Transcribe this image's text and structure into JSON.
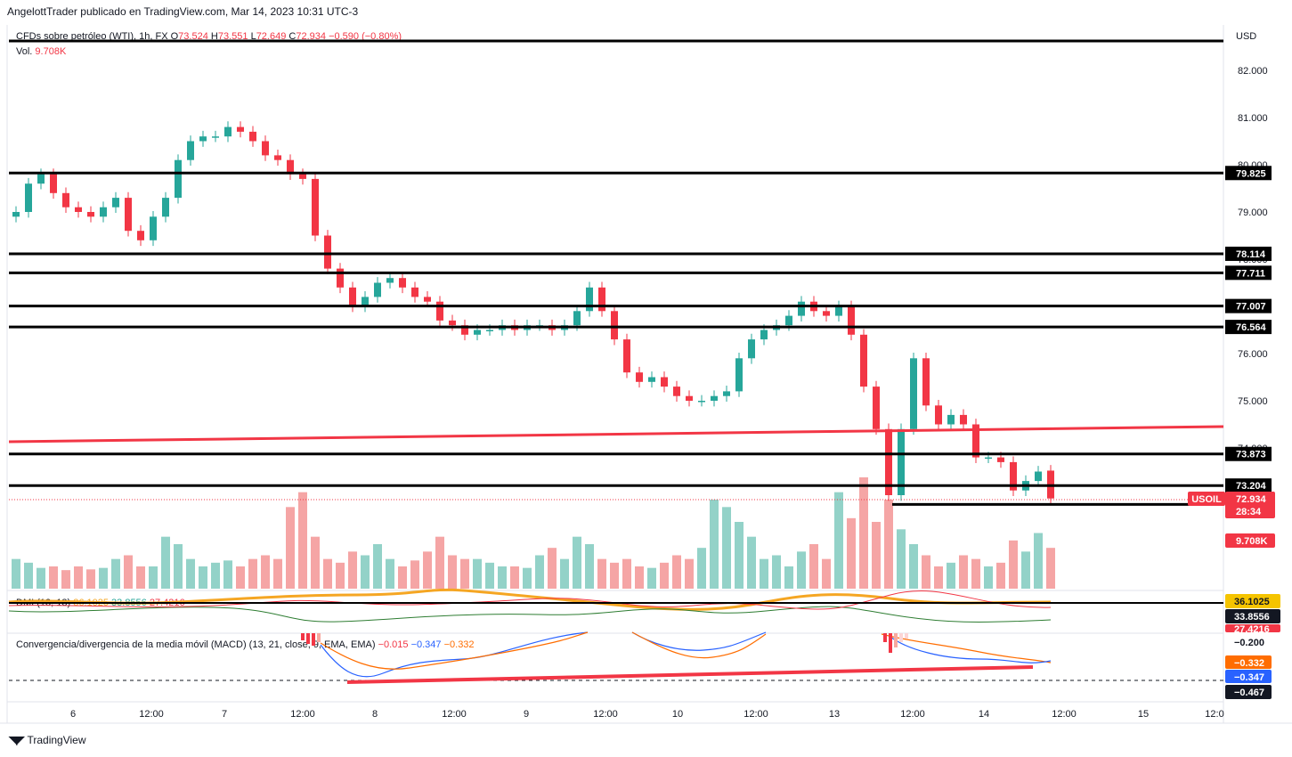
{
  "header": {
    "publisher_line": "AngelottTrader publicado en TradingView.com, Mar 14, 2023 10:31 UTC-3"
  },
  "legend": {
    "symbol": "CFDs sobre petróleo (WTI), 1h, FX",
    "open_label": "O",
    "open": "73.524",
    "high_label": "H",
    "high": "73.551",
    "low_label": "L",
    "low": "72.649",
    "close_label": "C",
    "close": "72.934",
    "change": "−0.590 (−0.80%)",
    "vol_label": "Vol.",
    "vol": "9.708K"
  },
  "dmi_legend": {
    "title": "DMI (13, 13)",
    "v1": "36.1025",
    "v2": "33.8556",
    "v3": "27.4216"
  },
  "macd_legend": {
    "title": "Convergencia/divergencia de la media móvil (MACD) (13, 21, close, 9, EMA, EMA)",
    "hist": "−0.015",
    "macd": "−0.347",
    "signal": "−0.332"
  },
  "currency": "USD",
  "price_axis": [
    "82.000",
    "81.000",
    "80.000",
    "79.000",
    "78.000",
    "77.000",
    "76.000",
    "75.000",
    "74.000"
  ],
  "level_tags": [
    "79.825",
    "78.114",
    "77.711",
    "77.007",
    "76.564",
    "73.873",
    "73.204",
    "72.804"
  ],
  "price_tag": {
    "symbol": "USOIL",
    "price": "72.934",
    "countdown": "28:34",
    "volume": "9.708K"
  },
  "indicator_tags": {
    "dmi_a": "36.1025",
    "dmi_b": "33.8556",
    "dmi_c": "27.4216",
    "macd_axis": "−0.200",
    "signal": "−0.332",
    "macd": "−0.347",
    "low_level": "−0.467"
  },
  "time_axis": [
    "6",
    "12:00",
    "7",
    "12:00",
    "8",
    "12:00",
    "9",
    "12:00",
    "10",
    "12:00",
    "13",
    "12:00",
    "14",
    "12:00",
    "15",
    "12:0"
  ],
  "footer": {
    "brand": "TradingView"
  },
  "colors": {
    "up": "#26a69a",
    "down": "#f23645",
    "level": "#000000",
    "trend": "#f23645"
  },
  "chart_data": {
    "type": "candlestick",
    "symbol": "USOIL",
    "interval": "1h",
    "ylim": [
      72.4,
      82.6
    ],
    "horizontal_levels": [
      79.825,
      78.114,
      77.711,
      77.007,
      76.564,
      73.873,
      73.204,
      72.804
    ],
    "trendline": {
      "from": 73.7,
      "to": 74.45,
      "color": "#f23645"
    },
    "closes": [
      79.0,
      79.6,
      79.8,
      79.4,
      79.1,
      79.0,
      78.9,
      79.1,
      79.3,
      78.6,
      78.4,
      78.9,
      79.3,
      80.1,
      80.5,
      80.6,
      80.6,
      80.8,
      80.7,
      80.5,
      80.2,
      80.1,
      79.8,
      79.7,
      78.5,
      77.8,
      77.4,
      77.0,
      77.2,
      77.5,
      77.6,
      77.4,
      77.2,
      77.1,
      76.7,
      76.6,
      76.4,
      76.5,
      76.5,
      76.6,
      76.5,
      76.6,
      76.6,
      76.5,
      76.6,
      76.9,
      77.4,
      76.9,
      76.3,
      75.6,
      75.4,
      75.5,
      75.3,
      75.1,
      75.0,
      75.0,
      75.1,
      75.2,
      75.9,
      76.3,
      76.5,
      76.6,
      76.8,
      77.1,
      76.9,
      76.8,
      77.0,
      76.4,
      75.3,
      74.4,
      73.0,
      74.4,
      75.9,
      74.9,
      74.5,
      74.7,
      74.5,
      73.8,
      73.8,
      73.7,
      73.1,
      73.3,
      73.5,
      72.93
    ],
    "opens": [
      78.9,
      79.0,
      79.6,
      79.8,
      79.4,
      79.1,
      79.0,
      78.9,
      79.1,
      79.3,
      78.6,
      78.4,
      78.9,
      79.3,
      80.1,
      80.5,
      80.6,
      80.6,
      80.8,
      80.7,
      80.5,
      80.2,
      80.1,
      79.8,
      79.7,
      78.5,
      77.8,
      77.4,
      77.0,
      77.2,
      77.5,
      77.6,
      77.4,
      77.2,
      77.1,
      76.7,
      76.6,
      76.4,
      76.5,
      76.5,
      76.6,
      76.5,
      76.6,
      76.6,
      76.5,
      76.6,
      76.9,
      77.4,
      76.9,
      76.3,
      75.6,
      75.4,
      75.5,
      75.3,
      75.1,
      75.0,
      75.0,
      75.1,
      75.2,
      75.9,
      76.3,
      76.5,
      76.6,
      76.8,
      77.1,
      76.9,
      76.8,
      77.0,
      76.4,
      75.3,
      74.4,
      73.0,
      74.4,
      75.9,
      74.9,
      74.5,
      74.7,
      74.5,
      73.8,
      73.8,
      73.7,
      73.1,
      73.3,
      73.52
    ],
    "volume": [
      40,
      35,
      28,
      30,
      25,
      30,
      26,
      28,
      40,
      45,
      30,
      30,
      70,
      60,
      40,
      30,
      35,
      38,
      30,
      40,
      45,
      40,
      110,
      130,
      70,
      40,
      35,
      50,
      45,
      60,
      40,
      30,
      38,
      50,
      70,
      45,
      40,
      40,
      35,
      30,
      30,
      28,
      45,
      55,
      40,
      70,
      60,
      40,
      35,
      40,
      30,
      28,
      35,
      45,
      40,
      55,
      120,
      110,
      90,
      70,
      40,
      45,
      30,
      50,
      60,
      40,
      130,
      95,
      150,
      90,
      120,
      80,
      60,
      45,
      30,
      35,
      45,
      40,
      30,
      35,
      65,
      50,
      75,
      55
    ],
    "macd_trendline": {
      "from": -0.467,
      "to": -0.36
    }
  }
}
